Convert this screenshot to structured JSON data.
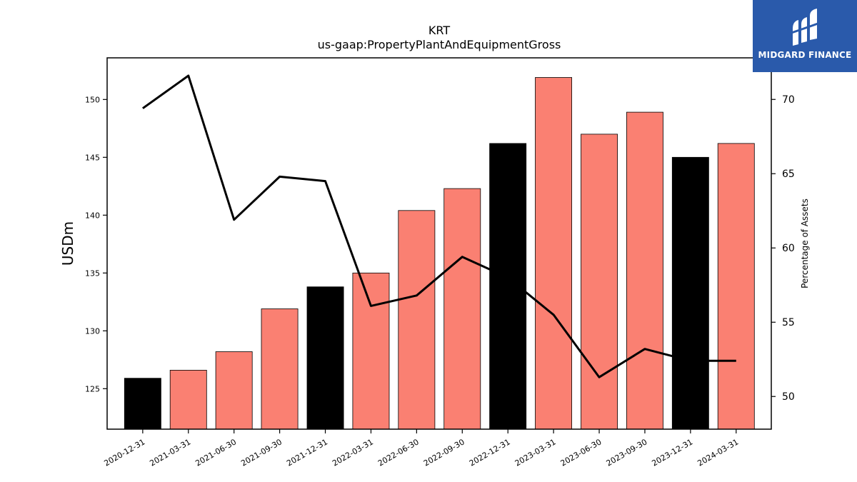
{
  "chart_data": {
    "type": "bar",
    "title": "KRT",
    "subtitle": "us-gaap:PropertyPlantAndEquipmentGross",
    "ylabel": "USDm",
    "y2label": "Percentage of Assets",
    "categories": [
      "2020-12-31",
      "2021-03-31",
      "2021-06-30",
      "2021-09-30",
      "2021-12-31",
      "2022-03-31",
      "2022-06-30",
      "2022-09-30",
      "2022-12-31",
      "2023-03-31",
      "2023-06-30",
      "2023-09-30",
      "2023-12-31",
      "2024-03-31"
    ],
    "series": [
      {
        "type": "bar",
        "values": [
          125.9,
          126.6,
          128.2,
          131.9,
          133.8,
          135.0,
          140.4,
          142.3,
          146.2,
          151.9,
          147.0,
          148.9,
          145.0,
          146.2
        ],
        "bar_colors": [
          "#000000",
          "#fa8072",
          "#fa8072",
          "#fa8072",
          "#000000",
          "#fa8072",
          "#fa8072",
          "#fa8072",
          "#000000",
          "#fa8072",
          "#fa8072",
          "#fa8072",
          "#000000",
          "#fa8072"
        ]
      },
      {
        "type": "line",
        "axis": "right",
        "color": "#000000",
        "values": [
          69.4,
          71.6,
          61.9,
          64.8,
          64.5,
          56.1,
          56.8,
          59.4,
          58.0,
          55.5,
          51.3,
          53.2,
          52.4,
          52.4
        ]
      }
    ],
    "ylim": [
      121.5,
      153.6
    ],
    "y2lim": [
      47.8,
      72.8
    ],
    "yticks": [
      125,
      130,
      135,
      140,
      145,
      150
    ],
    "y2ticks": [
      50,
      55,
      60,
      65,
      70
    ],
    "grid": false
  },
  "logo": {
    "text": "MIDGARD FINANCE",
    "icon": "midgard-logo-icon"
  }
}
